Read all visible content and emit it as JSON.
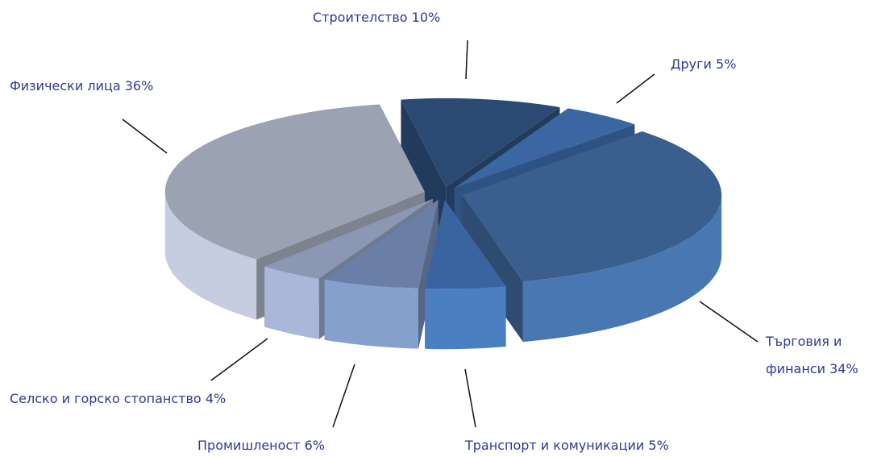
{
  "chart_data": {
    "type": "pie3d",
    "categories": [
      "Строителство",
      "Други",
      "Търговия и финанси",
      "Транспорт и комуникации",
      "Промишленост",
      "Селско и горско стопанство",
      "Физически лица"
    ],
    "values": [
      10,
      5,
      34,
      5,
      6,
      4,
      36
    ],
    "value_labels": [
      "10%",
      "5%",
      "34%",
      "5%",
      "6%",
      "4%",
      "36%"
    ],
    "colors": [
      "#2b4a73",
      "#3a67a2",
      "#3a5e8e",
      "#3a64a0",
      "#6b7fa6",
      "#8b97b3",
      "#9ba2b2"
    ],
    "side_colors": [
      "#1f3a5f",
      "#4574b4",
      "#4877b2",
      "#4a80c2",
      "#86a0cc",
      "#aab7d9",
      "#c6cde0"
    ]
  }
}
